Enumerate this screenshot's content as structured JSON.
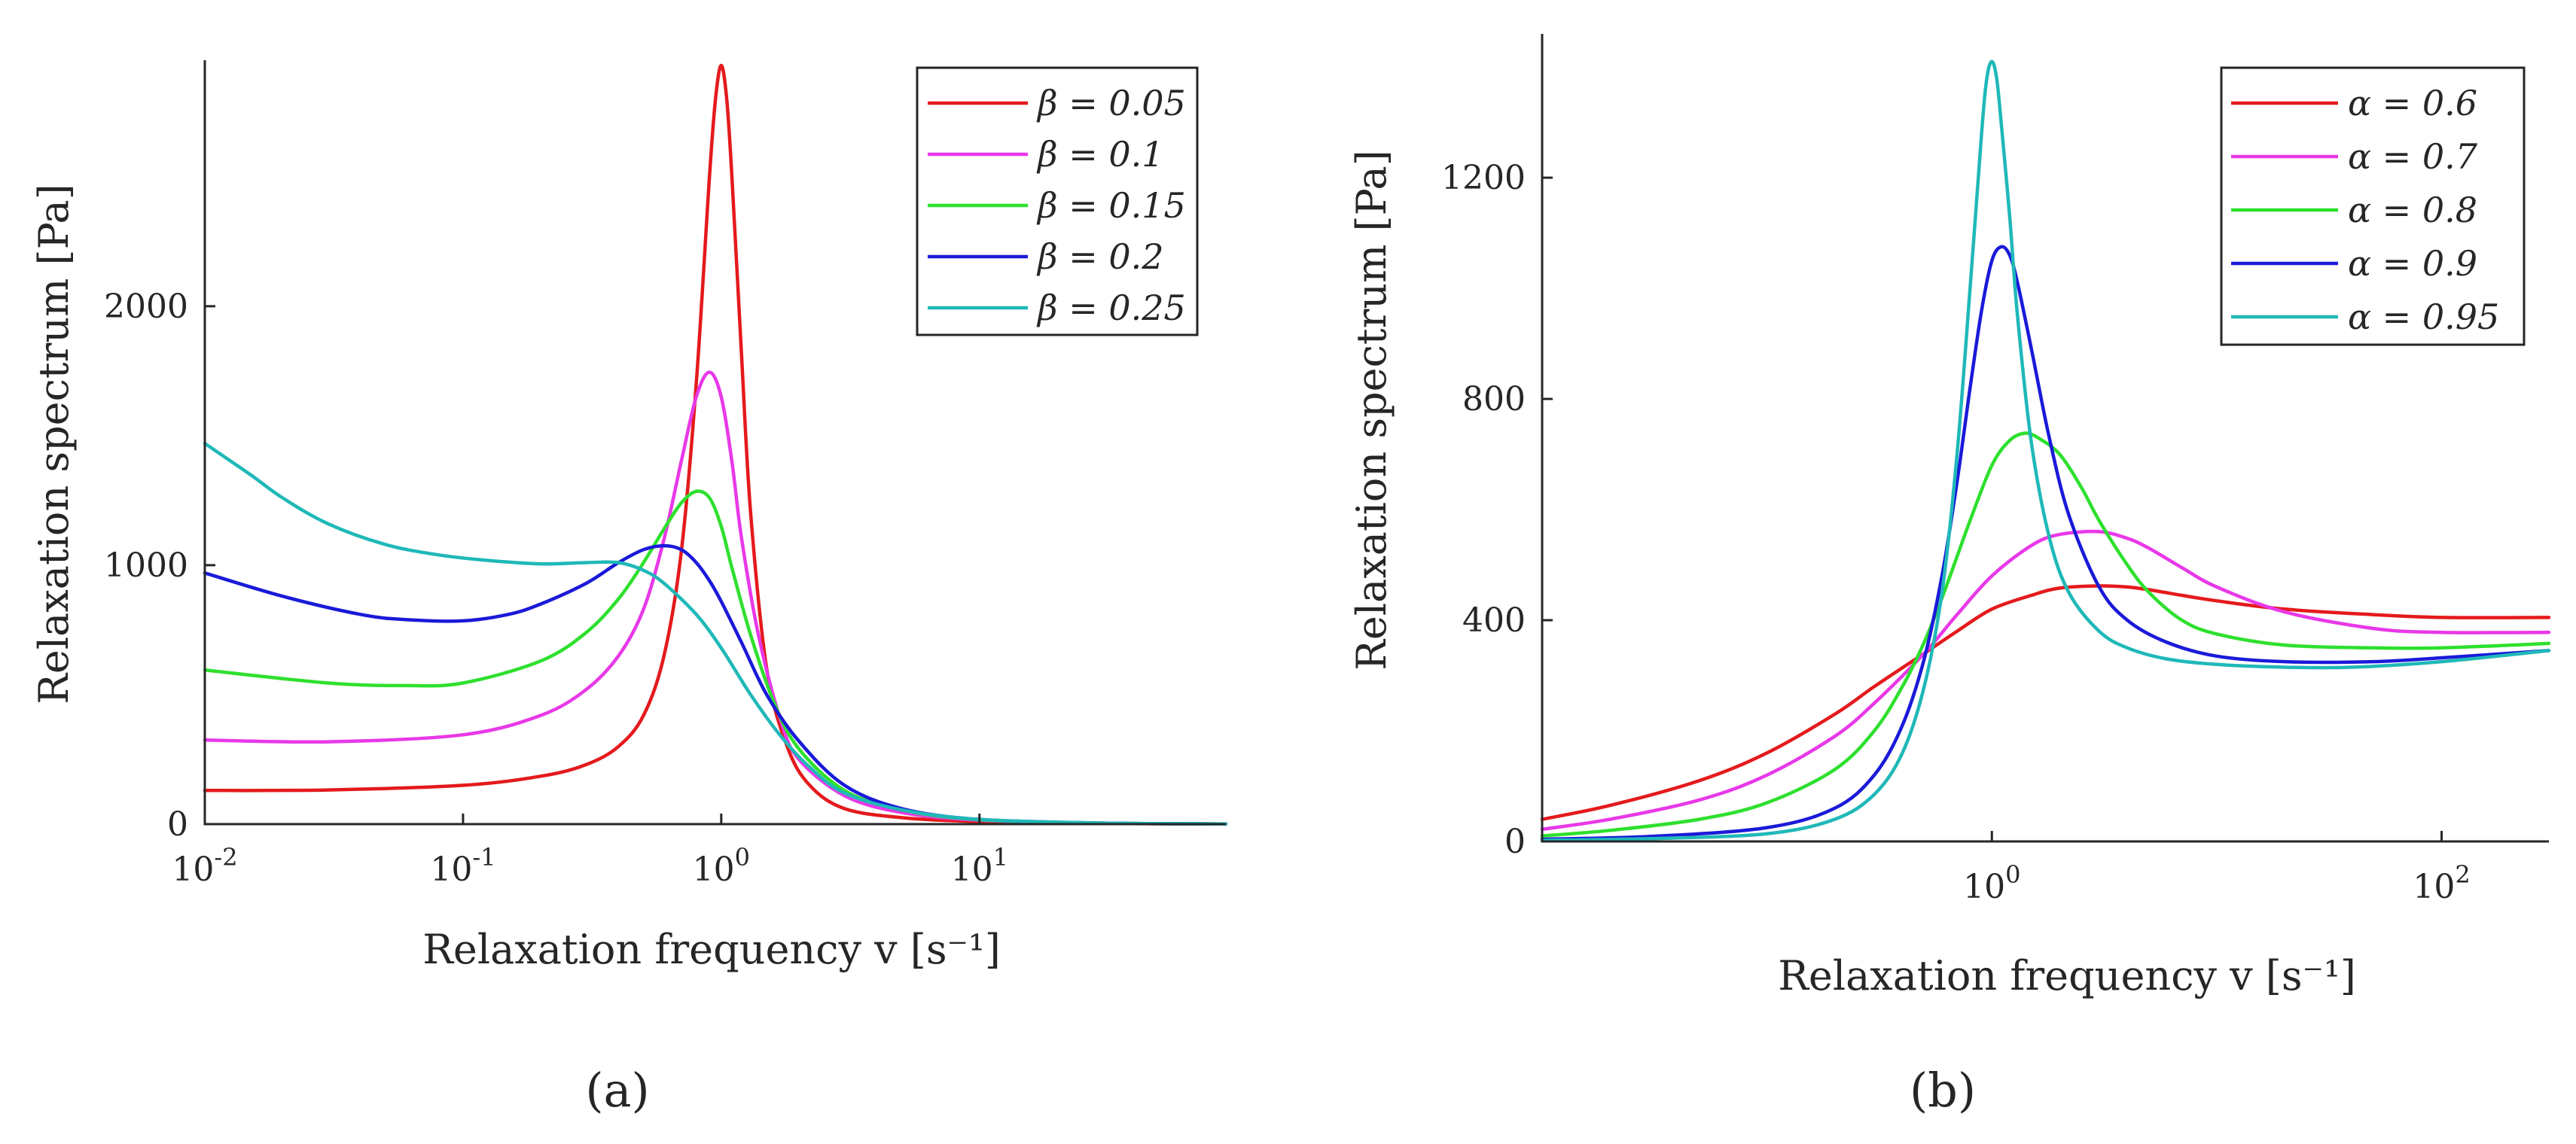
{
  "panels": [
    {
      "label": "(a)"
    },
    {
      "label": "(b)"
    }
  ],
  "chart_data": [
    {
      "type": "line",
      "panel": "a",
      "title": "",
      "xscale": "log",
      "xlabel": "Relaxation frequency v  [s⁻¹]",
      "ylabel": "Relaxation spectrum  [Pa]",
      "xlim": [
        0.01,
        90
      ],
      "ylim": [
        0,
        2950
      ],
      "xticks": [
        {
          "value": 0.01,
          "base": "10",
          "exp": "-2"
        },
        {
          "value": 0.1,
          "base": "10",
          "exp": "-1"
        },
        {
          "value": 1,
          "base": "10",
          "exp": "0"
        },
        {
          "value": 10,
          "base": "10",
          "exp": "1"
        }
      ],
      "yticks": [
        {
          "value": 0,
          "label": "0"
        },
        {
          "value": 1000,
          "label": "1000"
        },
        {
          "value": 2000,
          "label": "2000"
        }
      ],
      "legend_position": "top-right",
      "legend_symbol": "β",
      "series": [
        {
          "name": "β = 0.05",
          "color": "#e41a1c",
          "x": [
            0.01,
            0.03,
            0.1,
            0.2,
            0.3,
            0.4,
            0.5,
            0.6,
            0.7,
            0.8,
            0.9,
            0.95,
            1.0,
            1.05,
            1.1,
            1.2,
            1.3,
            1.5,
            1.8,
            2.2,
            3,
            5,
            10,
            30,
            90
          ],
          "y": [
            130,
            132,
            150,
            185,
            230,
            300,
            420,
            650,
            1050,
            1700,
            2500,
            2800,
            2930,
            2800,
            2500,
            1800,
            1200,
            600,
            300,
            150,
            60,
            25,
            10,
            3,
            1
          ]
        },
        {
          "name": "β = 0.1",
          "color": "#e838e8",
          "x": [
            0.01,
            0.03,
            0.1,
            0.2,
            0.3,
            0.4,
            0.5,
            0.6,
            0.7,
            0.8,
            0.9,
            1.0,
            1.1,
            1.2,
            1.4,
            1.7,
            2,
            3,
            5,
            10,
            30,
            90
          ],
          "y": [
            325,
            318,
            345,
            420,
            520,
            650,
            830,
            1100,
            1400,
            1650,
            1745,
            1650,
            1400,
            1100,
            720,
            400,
            250,
            110,
            45,
            15,
            4,
            1
          ]
        },
        {
          "name": "β = 0.15",
          "color": "#2ee02e",
          "x": [
            0.01,
            0.03,
            0.06,
            0.1,
            0.2,
            0.3,
            0.4,
            0.5,
            0.6,
            0.7,
            0.8,
            0.9,
            1.0,
            1.1,
            1.3,
            1.6,
            2,
            3,
            5,
            10,
            30,
            90
          ],
          "y": [
            595,
            545,
            535,
            545,
            630,
            740,
            870,
            1010,
            1140,
            1240,
            1285,
            1260,
            1150,
            990,
            730,
            470,
            290,
            130,
            55,
            17,
            4,
            1
          ]
        },
        {
          "name": "β = 0.2",
          "color": "#1a1ad9",
          "x": [
            0.01,
            0.02,
            0.04,
            0.06,
            0.1,
            0.15,
            0.2,
            0.3,
            0.4,
            0.5,
            0.6,
            0.7,
            0.8,
            0.9,
            1.0,
            1.2,
            1.5,
            2,
            3,
            5,
            10,
            30,
            90
          ],
          "y": [
            970,
            880,
            810,
            790,
            785,
            810,
            850,
            930,
            1010,
            1060,
            1075,
            1060,
            1010,
            940,
            860,
            700,
            500,
            320,
            150,
            60,
            18,
            4,
            1
          ]
        },
        {
          "name": "β = 0.25",
          "color": "#20b8b8",
          "x": [
            0.01,
            0.015,
            0.02,
            0.03,
            0.05,
            0.08,
            0.12,
            0.2,
            0.3,
            0.4,
            0.5,
            0.6,
            0.8,
            1.0,
            1.3,
            1.7,
            2.2,
            3,
            5,
            10,
            30,
            90
          ],
          "y": [
            1470,
            1350,
            1260,
            1160,
            1080,
            1040,
            1020,
            1005,
            1010,
            1010,
            980,
            930,
            810,
            680,
            500,
            340,
            220,
            120,
            55,
            18,
            4,
            1
          ]
        }
      ]
    },
    {
      "type": "line",
      "panel": "b",
      "title": "",
      "xscale": "log",
      "xlabel": "Relaxation frequency v  [s⁻¹]",
      "ylabel": "Relaxation spectrum  [Pa]",
      "xlim": [
        0.01,
        300
      ],
      "ylim": [
        0,
        1460
      ],
      "xticks": [
        {
          "value": 1,
          "base": "10",
          "exp": "0"
        },
        {
          "value": 100,
          "base": "10",
          "exp": "2"
        }
      ],
      "yticks": [
        {
          "value": 0,
          "label": "0"
        },
        {
          "value": 400,
          "label": "400"
        },
        {
          "value": 800,
          "label": "800"
        },
        {
          "value": 1200,
          "label": "1200"
        }
      ],
      "legend_position": "top-right",
      "legend_symbol": "α",
      "series": [
        {
          "name": "α = 0.6",
          "color": "#e41a1c",
          "x": [
            0.01,
            0.02,
            0.05,
            0.1,
            0.2,
            0.3,
            0.5,
            0.7,
            1,
            1.5,
            2,
            3,
            4,
            5,
            7,
            10,
            20,
            50,
            100,
            300
          ],
          "y": [
            40,
            65,
            110,
            160,
            230,
            280,
            340,
            380,
            420,
            445,
            458,
            462,
            460,
            455,
            445,
            435,
            420,
            410,
            405,
            405
          ]
        },
        {
          "name": "α = 0.7",
          "color": "#e838e8",
          "x": [
            0.01,
            0.02,
            0.05,
            0.1,
            0.2,
            0.3,
            0.5,
            0.7,
            1,
            1.5,
            2,
            3,
            4,
            5,
            7,
            10,
            20,
            50,
            100,
            300
          ],
          "y": [
            22,
            40,
            75,
            120,
            190,
            250,
            340,
            410,
            480,
            535,
            555,
            560,
            548,
            530,
            495,
            460,
            415,
            385,
            378,
            378
          ]
        },
        {
          "name": "α = 0.8",
          "color": "#2ee02e",
          "x": [
            0.01,
            0.02,
            0.05,
            0.1,
            0.2,
            0.3,
            0.4,
            0.5,
            0.6,
            0.8,
            1.0,
            1.2,
            1.4,
            1.6,
            2,
            2.5,
            3,
            4,
            5,
            7,
            10,
            20,
            50,
            100,
            300
          ],
          "y": [
            10,
            20,
            40,
            70,
            130,
            200,
            280,
            360,
            440,
            580,
            680,
            725,
            738,
            730,
            700,
            640,
            580,
            500,
            450,
            400,
            375,
            355,
            350,
            350,
            358
          ]
        },
        {
          "name": "α = 0.9",
          "color": "#1a1ad9",
          "x": [
            0.01,
            0.03,
            0.1,
            0.2,
            0.3,
            0.4,
            0.5,
            0.6,
            0.7,
            0.8,
            0.9,
            1.0,
            1.1,
            1.2,
            1.3,
            1.5,
            1.8,
            2.2,
            3,
            4,
            6,
            10,
            20,
            50,
            100,
            300
          ],
          "y": [
            4,
            9,
            25,
            60,
            120,
            210,
            330,
            480,
            650,
            820,
            960,
            1050,
            1075,
            1060,
            1010,
            890,
            730,
            590,
            460,
            400,
            360,
            335,
            325,
            325,
            332,
            345
          ]
        },
        {
          "name": "α = 0.95",
          "color": "#20b8b8",
          "x": [
            0.01,
            0.03,
            0.1,
            0.2,
            0.3,
            0.4,
            0.5,
            0.6,
            0.7,
            0.8,
            0.9,
            0.95,
            1.0,
            1.05,
            1.1,
            1.2,
            1.3,
            1.5,
            1.8,
            2.2,
            3,
            4,
            6,
            10,
            20,
            40,
            100,
            300
          ],
          "y": [
            2,
            5,
            14,
            40,
            85,
            160,
            280,
            450,
            700,
            1000,
            1280,
            1380,
            1410,
            1380,
            1300,
            1130,
            950,
            720,
            550,
            450,
            380,
            350,
            330,
            320,
            315,
            315,
            325,
            345
          ]
        }
      ]
    }
  ]
}
